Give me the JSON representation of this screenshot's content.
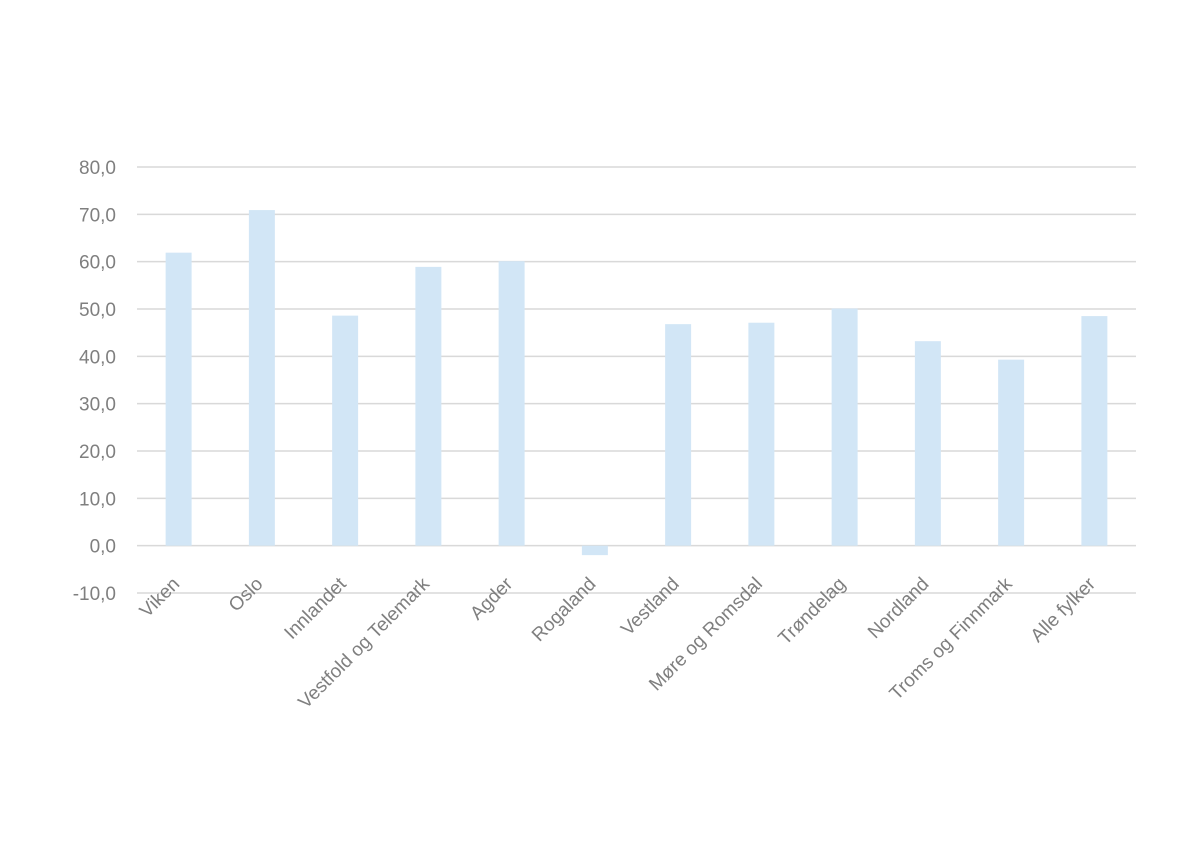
{
  "chart_data": {
    "type": "bar",
    "title": "",
    "xlabel": "",
    "ylabel": "",
    "categories": [
      "Viken",
      "Oslo",
      "Innlandet",
      "Vestfold og Telemark",
      "Agder",
      "Rogaland",
      "Vestland",
      "Møre og Romsdal",
      "Trøndelag",
      "Nordland",
      "Troms og Finnmark",
      "Alle fylker"
    ],
    "values": [
      61.9,
      70.9,
      48.6,
      58.9,
      60.1,
      -2.0,
      46.8,
      47.1,
      50.1,
      43.2,
      39.3,
      48.5
    ],
    "ylim": [
      -10,
      80
    ],
    "yticks": [
      "-10,0",
      "0,0",
      "10,0",
      "20,0",
      "30,0",
      "40,0",
      "50,0",
      "60,0",
      "70,0",
      "80,0"
    ],
    "grid": true,
    "legend": "none",
    "colors": {
      "bar": "#d2e6f6",
      "grid": "#d9d9d9",
      "axis_text": "#7f7f7f"
    }
  }
}
